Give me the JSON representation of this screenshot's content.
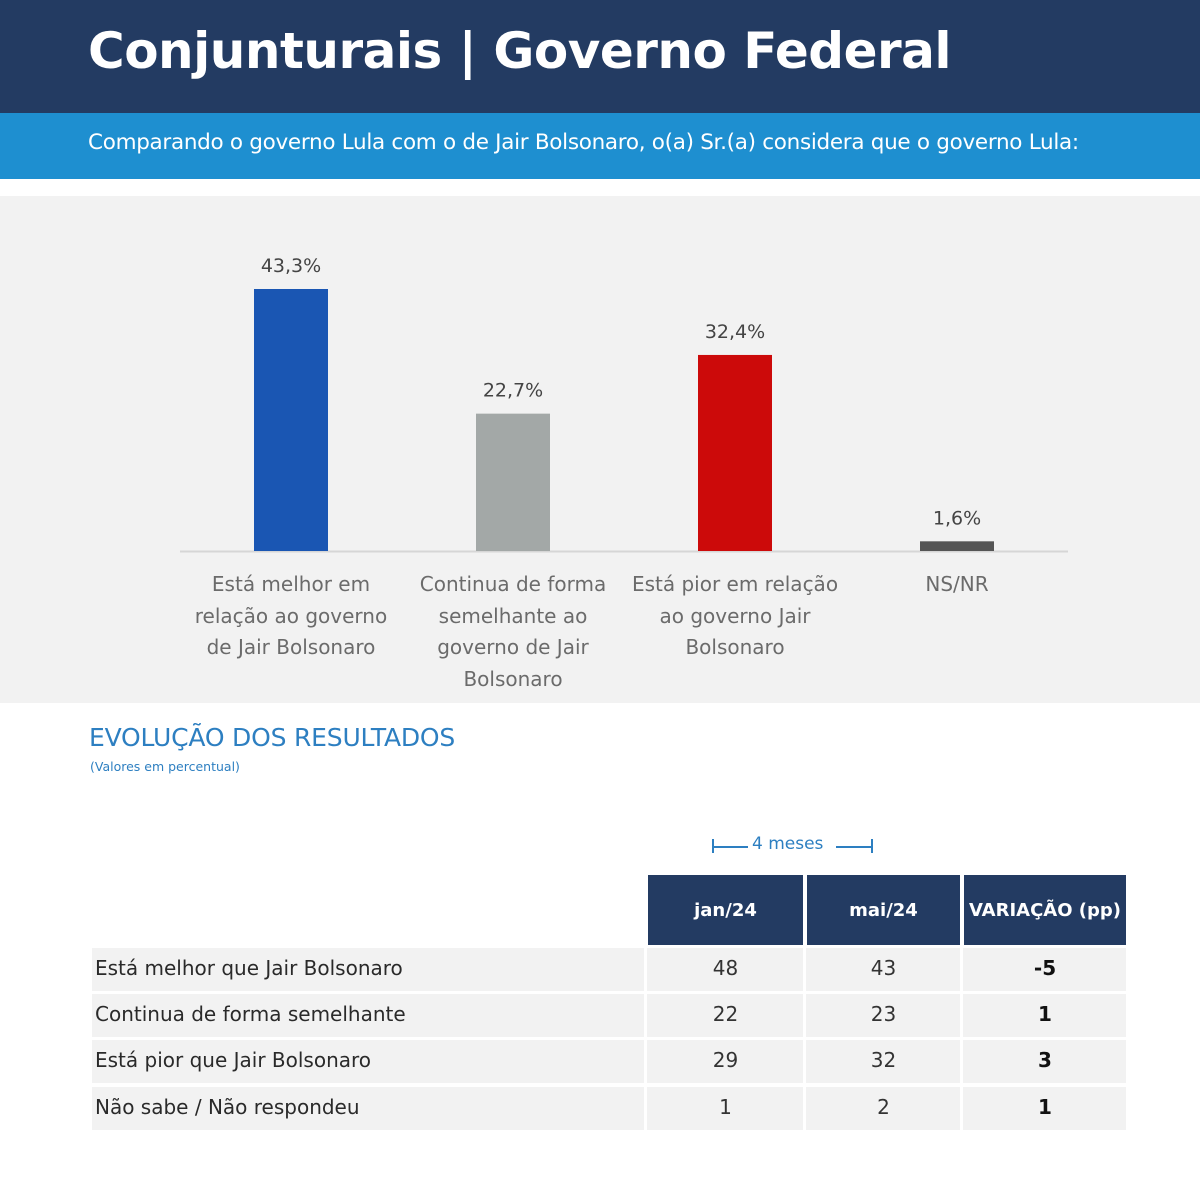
{
  "header": {
    "title": "Conjunturais | Governo Federal",
    "question": "Comparando o governo Lula com o de Jair Bolsonaro, o(a) Sr.(a) considera que o governo Lula:"
  },
  "colors": {
    "header_bg": "#233b62",
    "subheader_bg": "#1e8fd0",
    "accent_text": "#2d7fc1",
    "panel_bg": "#f2f2f2"
  },
  "chart_data": {
    "type": "bar",
    "categories": [
      "Está melhor em relação ao governo de Jair Bolsonaro",
      "Continua de forma semelhante ao governo de Jair Bolsonaro",
      "Está pior em relação ao governo Jair Bolsonaro",
      "NS/NR"
    ],
    "values": [
      43.3,
      22.7,
      32.4,
      1.6
    ],
    "value_labels": [
      "43,3%",
      "22,7%",
      "32,4%",
      "1,6%"
    ],
    "colors": [
      "#1a56b3",
      "#a3a8a7",
      "#cc0a0a",
      "#555555"
    ],
    "ylim": [
      0,
      43.3
    ],
    "grid": false,
    "legend": "none"
  },
  "evolution": {
    "title": "EVOLUÇÃO DOS RESULTADOS",
    "subtitle": "(Valores em percentual)",
    "span_label": "4 meses",
    "columns": [
      "jan/24",
      "mai/24",
      "VARIAÇÃO (pp)"
    ],
    "rows": [
      {
        "label": "Está melhor que Jair Bolsonaro",
        "jan": "48",
        "mai": "43",
        "var": "-5"
      },
      {
        "label": "Continua de forma semelhante",
        "jan": "22",
        "mai": "23",
        "var": "1"
      },
      {
        "label": "Está pior que Jair Bolsonaro",
        "jan": "29",
        "mai": "32",
        "var": "3"
      },
      {
        "label": "Não sabe / Não respondeu",
        "jan": "1",
        "mai": "2",
        "var": "1"
      }
    ]
  }
}
